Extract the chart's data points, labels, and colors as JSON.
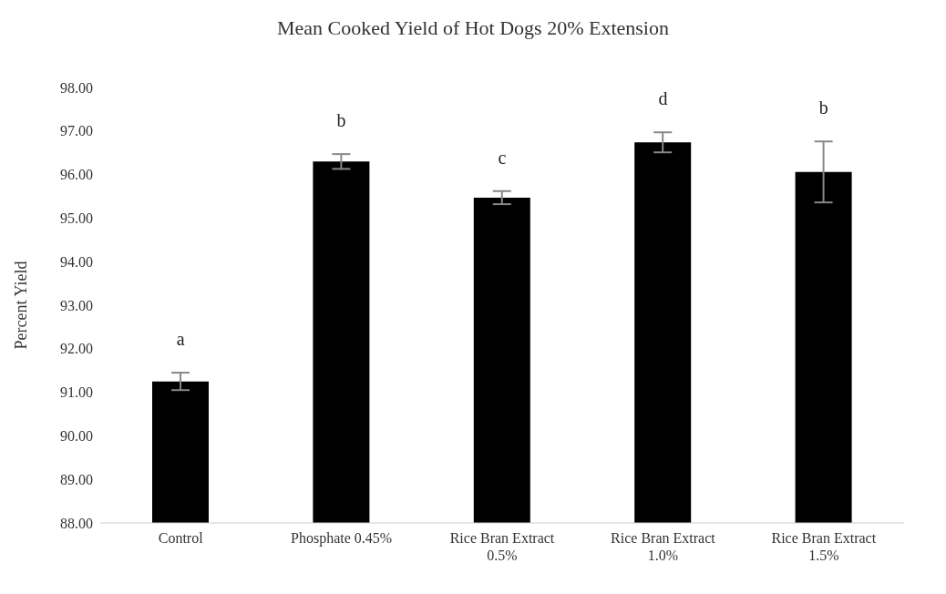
{
  "chart_data": {
    "type": "bar",
    "title": "Mean Cooked Yield of Hot Dogs 20% Extension",
    "ylabel": "Percent Yield",
    "categories": [
      "Control",
      "Phosphate 0.45%",
      "Rice Bran Extract 0.5%",
      "Rice Bran Extract 1.0%",
      "Rice Bran Extract 1.5%"
    ],
    "values": [
      91.25,
      96.3,
      95.47,
      96.74,
      96.06
    ],
    "errors": [
      0.2,
      0.17,
      0.15,
      0.23,
      0.7
    ],
    "color": "#000000",
    "ylim": [
      88,
      98
    ],
    "yticks": [
      {
        "value": 88,
        "label": "88.00"
      },
      {
        "value": 89,
        "label": "89.00"
      },
      {
        "value": 90,
        "label": "90.00"
      },
      {
        "value": 91,
        "label": "91.00"
      },
      {
        "value": 92,
        "label": "92.00"
      },
      {
        "value": 93,
        "label": "93.00"
      },
      {
        "value": 94,
        "label": "94.00"
      },
      {
        "value": 95,
        "label": "95.00"
      },
      {
        "value": 96,
        "label": "96.00"
      },
      {
        "value": 97,
        "label": "97.00"
      },
      {
        "value": 98,
        "label": "98.00"
      }
    ],
    "annotations": [
      "a",
      "b",
      "c",
      "d",
      "b"
    ],
    "grid": false,
    "legend": false
  }
}
